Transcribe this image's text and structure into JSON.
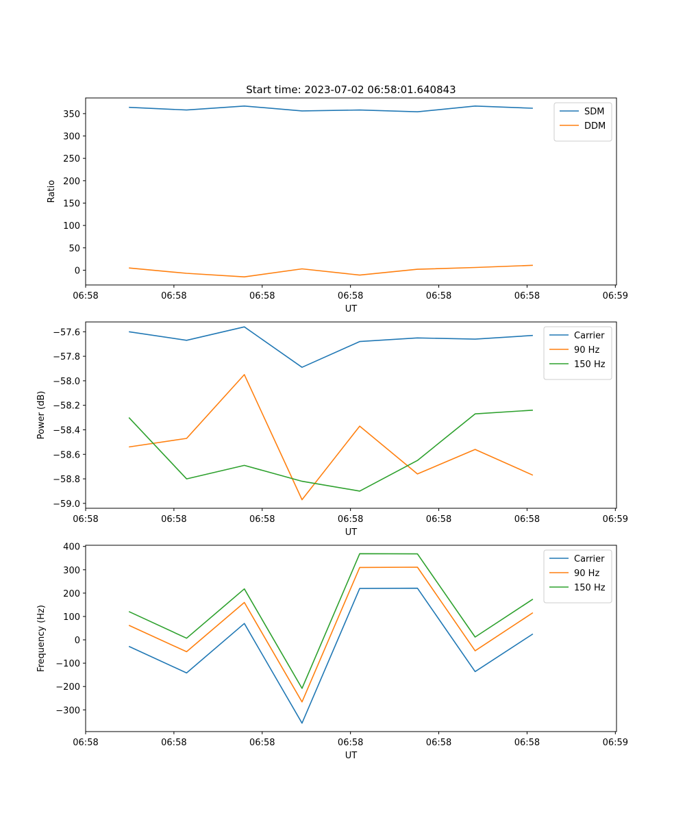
{
  "chart_data": [
    {
      "type": "line",
      "title": "Start time: 2023-07-02 06:58:01.640843",
      "xlabel": "UT",
      "ylabel": "Ratio",
      "x": [
        0,
        1,
        2,
        3,
        4,
        5,
        6,
        7
      ],
      "xlim": [
        -0.75,
        8.45
      ],
      "xtick_positions": [
        -0.75,
        0.78,
        2.31,
        3.84,
        5.37,
        6.9,
        8.43
      ],
      "xtick_labels": [
        "06:58",
        "06:58",
        "06:58",
        "06:58",
        "06:58",
        "06:58",
        "06:59"
      ],
      "ylim": [
        -33,
        385
      ],
      "yticks": [
        0,
        50,
        100,
        150,
        200,
        250,
        300,
        350
      ],
      "legend_position": "top-right",
      "series": [
        {
          "name": "SDM",
          "color": "#1f77b4",
          "values": [
            364,
            358,
            367,
            356,
            358,
            354,
            367,
            362
          ]
        },
        {
          "name": "DDM",
          "color": "#ff7f0e",
          "values": [
            5,
            -7,
            -15,
            3,
            -11,
            2,
            6,
            11
          ]
        }
      ]
    },
    {
      "type": "line",
      "title": "",
      "xlabel": "UT",
      "ylabel": "Power (dB)",
      "x": [
        0,
        1,
        2,
        3,
        4,
        5,
        6,
        7
      ],
      "xlim": [
        -0.75,
        8.45
      ],
      "xtick_positions": [
        -0.75,
        0.78,
        2.31,
        3.84,
        5.37,
        6.9,
        8.43
      ],
      "xtick_labels": [
        "06:58",
        "06:58",
        "06:58",
        "06:58",
        "06:58",
        "06:58",
        "06:59"
      ],
      "ylim": [
        -59.04,
        -57.52
      ],
      "yticks": [
        -59.0,
        -58.8,
        -58.6,
        -58.4,
        -58.2,
        -58.0,
        -57.8,
        -57.6
      ],
      "ytick_labels": [
        "−59.0",
        "−58.8",
        "−58.6",
        "−58.4",
        "−58.2",
        "−58.0",
        "−57.8",
        "−57.6"
      ],
      "legend_position": "top-right",
      "series": [
        {
          "name": "Carrier",
          "color": "#1f77b4",
          "values": [
            -57.6,
            -57.67,
            -57.56,
            -57.89,
            -57.68,
            -57.65,
            -57.66,
            -57.63
          ]
        },
        {
          "name": "90 Hz",
          "color": "#ff7f0e",
          "values": [
            -58.54,
            -58.47,
            -57.95,
            -58.97,
            -58.37,
            -58.76,
            -58.56,
            -58.77
          ]
        },
        {
          "name": "150 Hz",
          "color": "#2ca02c",
          "values": [
            -58.3,
            -58.8,
            -58.69,
            -58.82,
            -58.9,
            -58.65,
            -58.27,
            -58.24
          ]
        }
      ]
    },
    {
      "type": "line",
      "title": "",
      "xlabel": "UT",
      "ylabel": "Frequency (Hz)",
      "x": [
        0,
        1,
        2,
        3,
        4,
        5,
        6,
        7
      ],
      "xlim": [
        -0.75,
        8.45
      ],
      "xtick_positions": [
        -0.75,
        0.78,
        2.31,
        3.84,
        5.37,
        6.9,
        8.43
      ],
      "xtick_labels": [
        "06:58",
        "06:58",
        "06:58",
        "06:58",
        "06:58",
        "06:58",
        "06:59"
      ],
      "ylim": [
        -393,
        405
      ],
      "yticks": [
        -300,
        -200,
        -100,
        0,
        100,
        200,
        300,
        400
      ],
      "ytick_labels": [
        "−300",
        "−200",
        "−100",
        "0",
        "100",
        "200",
        "300",
        "400"
      ],
      "legend_position": "top-right",
      "series": [
        {
          "name": "Carrier",
          "color": "#1f77b4",
          "values": [
            -28,
            -142,
            70,
            -357,
            220,
            221,
            -136,
            25
          ]
        },
        {
          "name": "90 Hz",
          "color": "#ff7f0e",
          "values": [
            62,
            -51,
            160,
            -266,
            310,
            311,
            -47,
            116
          ]
        },
        {
          "name": "150 Hz",
          "color": "#2ca02c",
          "values": [
            121,
            7,
            218,
            -208,
            369,
            368,
            12,
            174
          ]
        }
      ]
    }
  ]
}
